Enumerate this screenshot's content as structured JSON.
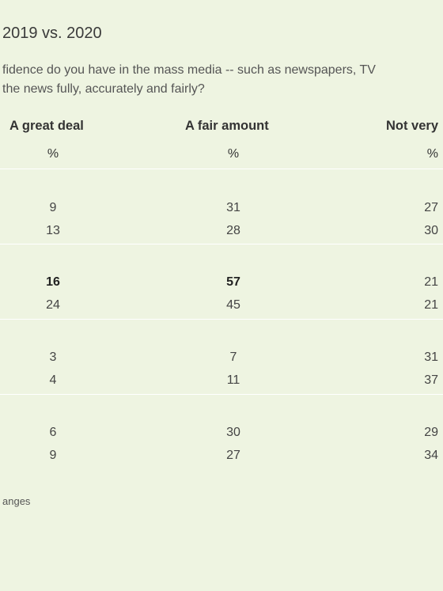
{
  "title": "2019 vs. 2020",
  "question": [
    "fidence do you have in the mass media -- such as newspapers, TV",
    "the news fully, accurately and fairly?"
  ],
  "columns": [
    "A great deal",
    "A fair amount",
    "Not very"
  ],
  "units": [
    "%",
    "%",
    "%"
  ],
  "groups": [
    {
      "rows": [
        {
          "values": [
            "9",
            "31",
            "27"
          ]
        },
        {
          "values": [
            "13",
            "28",
            "30"
          ]
        }
      ]
    },
    {
      "rows": [
        {
          "values": [
            "16",
            "57",
            "21"
          ],
          "emphasis": [
            true,
            true,
            false
          ]
        },
        {
          "values": [
            "24",
            "45",
            "21"
          ]
        }
      ]
    },
    {
      "rows": [
        {
          "values": [
            "3",
            "7",
            "31"
          ]
        },
        {
          "values": [
            "4",
            "11",
            "37"
          ]
        }
      ]
    },
    {
      "rows": [
        {
          "values": [
            "6",
            "30",
            "29"
          ]
        },
        {
          "values": [
            "9",
            "27",
            "34"
          ]
        }
      ]
    }
  ],
  "footnote": "anges"
}
